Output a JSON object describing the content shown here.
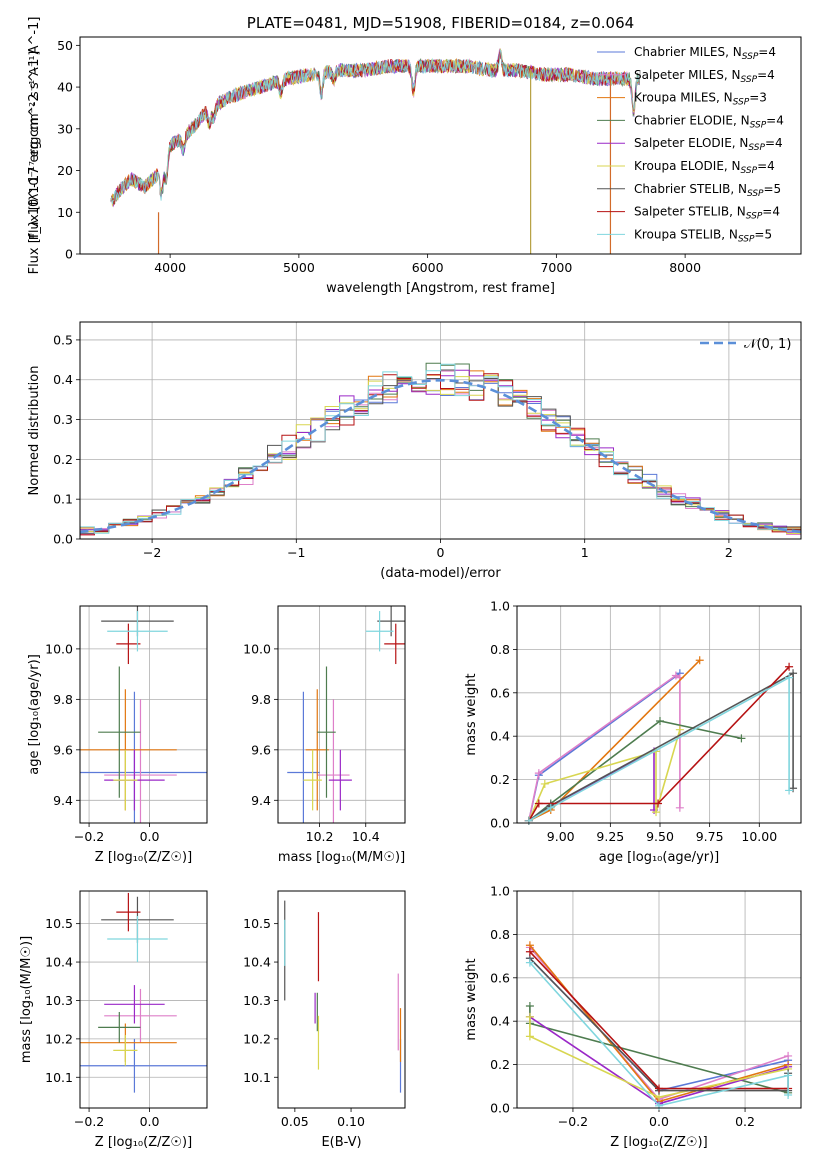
{
  "colors": [
    "#5b79d8",
    "#de7fc9",
    "#e2760f",
    "#4e7c4f",
    "#9a28c7",
    "#d8d650",
    "#555555",
    "#b61213",
    "#80d6de"
  ],
  "chart_data": [
    {
      "id": "spectrum",
      "type": "line",
      "title": "PLATE=0481, MJD=51908, FIBERID=0184, z=0.064",
      "xlabel": "wavelength [Angstrom, rest frame]",
      "ylabel": "Flux [f_λ 10^-17 erg cm^-2 s^-1 A^-1]",
      "xlim": [
        3300,
        8900
      ],
      "ylim": [
        0,
        52
      ],
      "xticks": [
        "4000",
        "5000",
        "6000",
        "7000",
        "8000"
      ],
      "yticks": [
        "0",
        "10",
        "20",
        "30",
        "40",
        "50"
      ],
      "legend": [
        {
          "prefix": "Chabrier MILES, N",
          "sub": "SSP",
          "suffix": "=4"
        },
        {
          "prefix": "Salpeter MILES, N",
          "sub": "SSP",
          "suffix": "=4"
        },
        {
          "prefix": "Kroupa MILES, N",
          "sub": "SSP",
          "suffix": "=3"
        },
        {
          "prefix": "Chabrier ELODIE, N",
          "sub": "SSP",
          "suffix": "=4"
        },
        {
          "prefix": "Salpeter ELODIE, N",
          "sub": "SSP",
          "suffix": "=4"
        },
        {
          "prefix": "Kroupa ELODIE, N",
          "sub": "SSP",
          "suffix": "=4"
        },
        {
          "prefix": "Chabrier STELIB, N",
          "sub": "SSP",
          "suffix": "=5"
        },
        {
          "prefix": "Salpeter STELIB, N",
          "sub": "SSP",
          "suffix": "=4"
        },
        {
          "prefix": "Kroupa STELIB, N",
          "sub": "SSP",
          "suffix": "=5"
        }
      ],
      "legend_placement": "right",
      "continuum": {
        "x": [
          3540,
          3600,
          3700,
          3800,
          3900,
          4000,
          4100,
          4200,
          4300,
          4500,
          4700,
          4900,
          5100,
          5300,
          5500,
          5700,
          5900,
          6100,
          6300,
          6500,
          6700,
          6900,
          7100,
          7300,
          7500,
          7600
        ],
        "y": [
          12,
          15,
          18,
          16,
          19,
          26,
          28,
          31,
          35,
          38,
          40,
          42,
          43,
          44,
          44,
          45,
          45,
          45,
          45,
          44,
          44,
          43,
          43,
          42,
          42,
          42
        ]
      },
      "vertical_lines": [
        {
          "x": 3910,
          "y": [
            0,
            10
          ]
        },
        {
          "x": 6800,
          "y": [
            0,
            44
          ]
        },
        {
          "x": 7420,
          "y": [
            0,
            42
          ]
        }
      ]
    },
    {
      "id": "residuals",
      "type": "histogram",
      "xlabel": "(data-model)/error",
      "ylabel": "Normed distribution",
      "xlim": [
        -2.5,
        2.5
      ],
      "ylim": [
        0,
        0.545
      ],
      "xticks": [
        "−2",
        "−1",
        "0",
        "1",
        "2"
      ],
      "yticks": [
        "0.0",
        "0.1",
        "0.2",
        "0.3",
        "0.4",
        "0.5"
      ],
      "grid": true,
      "bin_width": 0.1,
      "legend_label": "𝒩(0, 1)",
      "legend_placement": "top-right",
      "gaussian": {
        "mean": 0,
        "sigma": 1
      }
    },
    {
      "id": "age-vs-z",
      "type": "errorbar",
      "xlabel": "Z [log₁₀(Z/Z☉)]",
      "ylabel": "age  [log₁₀(age/yr)]",
      "xlim": [
        -0.23,
        0.19
      ],
      "ylim": [
        9.31,
        10.17
      ],
      "xticks": [
        "−0.2",
        "0.0"
      ],
      "yticks": [
        "9.4",
        "9.6",
        "9.8",
        "10.0"
      ],
      "grid": true,
      "points": [
        {
          "x": -0.05,
          "xerr": 0.25,
          "y": 9.51,
          "yerr": 0.32
        },
        {
          "x": -0.03,
          "xerr": 0.12,
          "y": 9.5,
          "yerr": 0.3
        },
        {
          "x": -0.08,
          "xerr": 0.17,
          "y": 9.6,
          "yerr": 0.24
        },
        {
          "x": -0.1,
          "xerr": 0.07,
          "y": 9.67,
          "yerr": 0.26
        },
        {
          "x": -0.05,
          "xerr": 0.1,
          "y": 9.48,
          "yerr": 0.12
        },
        {
          "x": -0.08,
          "xerr": 0.04,
          "y": 9.48,
          "yerr": 0.12
        },
        {
          "x": -0.04,
          "xerr": 0.12,
          "y": 10.11,
          "yerr": 0.06
        },
        {
          "x": -0.07,
          "xerr": 0.04,
          "y": 10.02,
          "yerr": 0.08
        },
        {
          "x": -0.04,
          "xerr": 0.1,
          "y": 10.07,
          "yerr": 0.08
        }
      ]
    },
    {
      "id": "age-vs-mass",
      "type": "errorbar",
      "xlabel": "mass [log₁₀(M/M☉)]",
      "ylabel": "",
      "xlim": [
        10.02,
        10.57
      ],
      "ylim": [
        9.31,
        10.17
      ],
      "xticks": [
        "10.2",
        "10.4"
      ],
      "yticks": [
        "9.4",
        "9.6",
        "9.8",
        "10.0"
      ],
      "grid": true,
      "points": [
        {
          "x": 10.13,
          "xerr": 0.07,
          "y": 9.51,
          "yerr": 0.32
        },
        {
          "x": 10.26,
          "xerr": 0.07,
          "y": 9.5,
          "yerr": 0.3
        },
        {
          "x": 10.19,
          "xerr": 0.05,
          "y": 9.6,
          "yerr": 0.24
        },
        {
          "x": 10.23,
          "xerr": 0.04,
          "y": 9.67,
          "yerr": 0.26
        },
        {
          "x": 10.29,
          "xerr": 0.05,
          "y": 9.48,
          "yerr": 0.12
        },
        {
          "x": 10.17,
          "xerr": 0.04,
          "y": 9.48,
          "yerr": 0.12
        },
        {
          "x": 10.51,
          "xerr": 0.06,
          "y": 10.11,
          "yerr": 0.06
        },
        {
          "x": 10.53,
          "xerr": 0.05,
          "y": 10.02,
          "yerr": 0.08
        },
        {
          "x": 10.46,
          "xerr": 0.06,
          "y": 10.07,
          "yerr": 0.08
        }
      ]
    },
    {
      "id": "weight-vs-age",
      "type": "line",
      "xlabel": "age  [log₁₀(age/yr)]",
      "ylabel": "mass weight",
      "xlim": [
        8.78,
        10.21
      ],
      "ylim": [
        0,
        1
      ],
      "xticks": [
        "9.00",
        "9.25",
        "9.50",
        "9.75",
        "10.00"
      ],
      "yticks": [
        "0.0",
        "0.2",
        "0.4",
        "0.6",
        "0.8",
        "1.0"
      ],
      "grid": true,
      "series": [
        {
          "x": [
            8.84,
            8.89,
            9.6
          ],
          "y": [
            0.01,
            0.22,
            0.69
          ]
        },
        {
          "x": [
            8.84,
            8.89,
            9.58,
            9.6,
            9.6
          ],
          "y": [
            0.01,
            0.23,
            0.68,
            0.67,
            0.07
          ]
        },
        {
          "x": [
            8.84,
            8.95,
            9.7
          ],
          "y": [
            0.01,
            0.06,
            0.75
          ]
        },
        {
          "x": [
            8.84,
            8.95,
            9.5,
            9.91
          ],
          "y": [
            0.01,
            0.09,
            0.47,
            0.39
          ]
        },
        {
          "x": [
            8.84,
            8.95,
            9.47,
            9.47
          ],
          "y": [
            0.01,
            0.08,
            0.33,
            0.06
          ]
        },
        {
          "x": [
            8.84,
            8.92,
            9.48,
            9.48,
            9.6
          ],
          "y": [
            0.01,
            0.18,
            0.33,
            0.05,
            0.43
          ]
        },
        {
          "x": [
            8.84,
            8.95,
            10.17,
            10.17
          ],
          "y": [
            0.01,
            0.08,
            0.69,
            0.16
          ]
        },
        {
          "x": [
            8.84,
            8.89,
            9.49,
            10.15
          ],
          "y": [
            0.01,
            0.09,
            0.09,
            0.72
          ]
        },
        {
          "x": [
            8.84,
            8.95,
            10.15,
            10.15
          ],
          "y": [
            0.01,
            0.07,
            0.67,
            0.15
          ]
        }
      ]
    },
    {
      "id": "mass-vs-z",
      "type": "errorbar",
      "xlabel": "Z [log₁₀(Z/Z☉)]",
      "ylabel": "mass [log₁₀(M/M☉)]",
      "xlim": [
        -0.23,
        0.19
      ],
      "ylim": [
        10.02,
        10.585
      ],
      "xticks": [
        "−0.2",
        "0.0"
      ],
      "yticks": [
        "10.1",
        "10.2",
        "10.3",
        "10.4",
        "10.5"
      ],
      "grid": true,
      "points": [
        {
          "x": -0.05,
          "xerr": 0.25,
          "y": 10.13,
          "yerr": 0.07
        },
        {
          "x": -0.03,
          "xerr": 0.12,
          "y": 10.26,
          "yerr": 0.07
        },
        {
          "x": -0.08,
          "xerr": 0.17,
          "y": 10.19,
          "yerr": 0.05
        },
        {
          "x": -0.1,
          "xerr": 0.07,
          "y": 10.23,
          "yerr": 0.04
        },
        {
          "x": -0.05,
          "xerr": 0.1,
          "y": 10.29,
          "yerr": 0.05
        },
        {
          "x": -0.08,
          "xerr": 0.04,
          "y": 10.17,
          "yerr": 0.04
        },
        {
          "x": -0.04,
          "xerr": 0.12,
          "y": 10.51,
          "yerr": 0.06
        },
        {
          "x": -0.07,
          "xerr": 0.04,
          "y": 10.53,
          "yerr": 0.05
        },
        {
          "x": -0.04,
          "xerr": 0.1,
          "y": 10.46,
          "yerr": 0.06
        }
      ]
    },
    {
      "id": "mass-vs-ebv",
      "type": "errorbar",
      "xlabel": "E(B-V)",
      "ylabel": "",
      "xlim": [
        0.035,
        0.148
      ],
      "ylim": [
        10.02,
        10.585
      ],
      "xticks": [
        "0.05",
        "0.10"
      ],
      "yticks": [
        "10.1",
        "10.2",
        "10.3",
        "10.4",
        "10.5"
      ],
      "grid": false,
      "points": [
        {
          "x": 0.144,
          "y": 10.13,
          "yerr": 0.07
        },
        {
          "x": 0.142,
          "y": 10.27,
          "yerr": 0.1
        },
        {
          "x": 0.144,
          "y": 10.21,
          "yerr": 0.07
        },
        {
          "x": 0.07,
          "y": 10.27,
          "yerr": 0.05
        },
        {
          "x": 0.068,
          "y": 10.28,
          "yerr": 0.04
        },
        {
          "x": 0.071,
          "y": 10.19,
          "yerr": 0.07
        },
        {
          "x": 0.041,
          "y": 10.43,
          "yerr": 0.13
        },
        {
          "x": 0.071,
          "y": 10.44,
          "yerr": 0.09
        },
        {
          "x": 0.041,
          "y": 10.45,
          "yerr": 0.06
        }
      ]
    },
    {
      "id": "weight-vs-z",
      "type": "line",
      "xlabel": "Z [log₁₀(Z/Z☉)]",
      "ylabel": "mass weight",
      "xlim": [
        -0.33,
        0.33
      ],
      "ylim": [
        0,
        1
      ],
      "xticks": [
        "−0.2",
        "0.0",
        "0.2"
      ],
      "yticks": [
        "0.0",
        "0.2",
        "0.4",
        "0.6",
        "0.8",
        "1.0"
      ],
      "grid": true,
      "series": [
        {
          "x": [
            -0.3,
            0.0,
            0.3
          ],
          "y": [
            0.69,
            0.08,
            0.22
          ]
        },
        {
          "x": [
            -0.3,
            0.0,
            0.3
          ],
          "y": [
            0.74,
            0.04,
            0.24
          ]
        },
        {
          "x": [
            -0.3,
            0.0,
            0.3
          ],
          "y": [
            0.75,
            0.03,
            0.2
          ]
        },
        {
          "x": [
            -0.3,
            -0.3,
            0.3
          ],
          "y": [
            0.47,
            0.39,
            0.07
          ]
        },
        {
          "x": [
            -0.3,
            0.0,
            0.3
          ],
          "y": [
            0.42,
            0.02,
            0.19
          ]
        },
        {
          "x": [
            -0.3,
            -0.3,
            0.0,
            0.3
          ],
          "y": [
            0.42,
            0.33,
            0.05,
            0.18
          ]
        },
        {
          "x": [
            -0.3,
            0.0,
            0.3,
            0.3
          ],
          "y": [
            0.69,
            0.08,
            0.08,
            0.16
          ]
        },
        {
          "x": [
            -0.3,
            0.0,
            0.3
          ],
          "y": [
            0.72,
            0.09,
            0.09
          ]
        },
        {
          "x": [
            -0.3,
            0.0,
            0.3,
            0.3
          ],
          "y": [
            0.67,
            0.01,
            0.15,
            0.06
          ]
        }
      ]
    }
  ]
}
